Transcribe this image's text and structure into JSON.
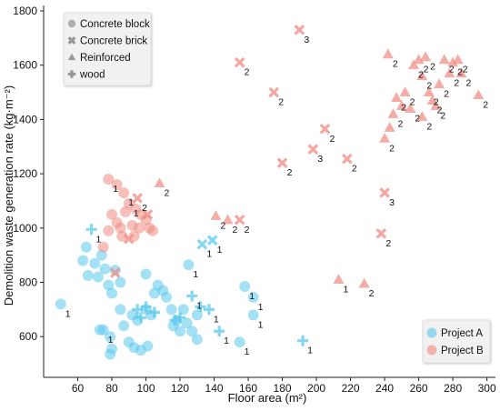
{
  "chart_data": {
    "type": "scatter",
    "xlabel": "Floor area (m²)",
    "ylabel": "Demolition waste generation rate (kg·m⁻²)",
    "xlim": [
      40,
      305
    ],
    "ylim": [
      450,
      1820
    ],
    "xticks": [
      60,
      80,
      100,
      120,
      140,
      160,
      180,
      200,
      220,
      240,
      260,
      280,
      300
    ],
    "yticks": [
      600,
      800,
      1000,
      1200,
      1400,
      1600,
      1800
    ],
    "grid": false,
    "marker_legend": {
      "placement": "top-left",
      "entries": [
        {
          "label": "Concrete block",
          "marker": "circle"
        },
        {
          "label": "Concrete brick",
          "marker": "x"
        },
        {
          "label": "Reinforced",
          "marker": "triangle"
        },
        {
          "label": "wood",
          "marker": "plus"
        }
      ]
    },
    "series_legend": {
      "placement": "bottom-right",
      "entries": [
        {
          "label": "Project A",
          "color": "#5bc8ec"
        },
        {
          "label": "Project B",
          "color": "#f08a80"
        }
      ]
    },
    "series": [
      {
        "name": "Project A",
        "color": "#5bc8ec",
        "points": [
          {
            "x": 50,
            "y": 720,
            "m": "circle",
            "label": "1"
          },
          {
            "x": 65,
            "y": 930,
            "m": "circle"
          },
          {
            "x": 63,
            "y": 880,
            "m": "circle"
          },
          {
            "x": 66,
            "y": 825,
            "m": "circle"
          },
          {
            "x": 70,
            "y": 870,
            "m": "circle"
          },
          {
            "x": 72,
            "y": 820,
            "m": "circle"
          },
          {
            "x": 74,
            "y": 900,
            "m": "circle"
          },
          {
            "x": 76,
            "y": 850,
            "m": "circle"
          },
          {
            "x": 78,
            "y": 790,
            "m": "circle"
          },
          {
            "x": 80,
            "y": 760,
            "m": "circle"
          },
          {
            "x": 82,
            "y": 845,
            "m": "circle"
          },
          {
            "x": 85,
            "y": 800,
            "m": "circle"
          },
          {
            "x": 75,
            "y": 625,
            "m": "circle",
            "label": "1"
          },
          {
            "x": 73,
            "y": 625,
            "m": "circle"
          },
          {
            "x": 79,
            "y": 600,
            "m": "circle"
          },
          {
            "x": 80,
            "y": 555,
            "m": "circle"
          },
          {
            "x": 79,
            "y": 535,
            "m": "circle"
          },
          {
            "x": 85,
            "y": 700,
            "m": "circle"
          },
          {
            "x": 87,
            "y": 640,
            "m": "circle"
          },
          {
            "x": 90,
            "y": 580,
            "m": "circle"
          },
          {
            "x": 92,
            "y": 680,
            "m": "circle"
          },
          {
            "x": 95,
            "y": 660,
            "m": "circle"
          },
          {
            "x": 93,
            "y": 560,
            "m": "circle"
          },
          {
            "x": 97,
            "y": 550,
            "m": "circle"
          },
          {
            "x": 100,
            "y": 830,
            "m": "circle"
          },
          {
            "x": 100,
            "y": 700,
            "m": "circle"
          },
          {
            "x": 101,
            "y": 565,
            "m": "circle"
          },
          {
            "x": 103,
            "y": 680,
            "m": "circle"
          },
          {
            "x": 105,
            "y": 760,
            "m": "circle"
          },
          {
            "x": 107,
            "y": 790,
            "m": "circle"
          },
          {
            "x": 110,
            "y": 770,
            "m": "circle"
          },
          {
            "x": 112,
            "y": 745,
            "m": "circle"
          },
          {
            "x": 115,
            "y": 700,
            "m": "circle"
          },
          {
            "x": 116,
            "y": 640,
            "m": "circle"
          },
          {
            "x": 118,
            "y": 660,
            "m": "circle"
          },
          {
            "x": 120,
            "y": 620,
            "m": "circle"
          },
          {
            "x": 122,
            "y": 700,
            "m": "circle"
          },
          {
            "x": 124,
            "y": 650,
            "m": "circle"
          },
          {
            "x": 125,
            "y": 865,
            "m": "circle",
            "label": "1"
          },
          {
            "x": 127,
            "y": 620,
            "m": "circle"
          },
          {
            "x": 130,
            "y": 590,
            "m": "circle"
          },
          {
            "x": 130,
            "y": 680,
            "m": "circle"
          },
          {
            "x": 155,
            "y": 580,
            "m": "circle",
            "label": "1"
          },
          {
            "x": 158,
            "y": 785,
            "m": "circle",
            "label": "1"
          },
          {
            "x": 163,
            "y": 745,
            "m": "circle",
            "label": "1"
          },
          {
            "x": 163,
            "y": 680,
            "m": "circle",
            "label": "1"
          },
          {
            "x": 68,
            "y": 995,
            "m": "plus",
            "label": "1"
          },
          {
            "x": 95,
            "y": 700,
            "m": "plus"
          },
          {
            "x": 100,
            "y": 710,
            "m": "plus"
          },
          {
            "x": 105,
            "y": 690,
            "m": "plus"
          },
          {
            "x": 97,
            "y": 670,
            "m": "plus"
          },
          {
            "x": 117,
            "y": 660,
            "m": "plus"
          },
          {
            "x": 120,
            "y": 670,
            "m": "plus"
          },
          {
            "x": 127,
            "y": 750,
            "m": "plus",
            "label": "1"
          },
          {
            "x": 132,
            "y": 710,
            "m": "plus"
          },
          {
            "x": 137,
            "y": 700,
            "m": "plus",
            "label": "1"
          },
          {
            "x": 143,
            "y": 620,
            "m": "plus",
            "label": "1"
          },
          {
            "x": 133,
            "y": 940,
            "m": "x",
            "label": "1"
          },
          {
            "x": 139,
            "y": 955,
            "m": "x",
            "label": "1"
          },
          {
            "x": 192,
            "y": 585,
            "m": "plus",
            "label": "1"
          }
        ]
      },
      {
        "name": "Project B",
        "color": "#f08a80",
        "points": [
          {
            "x": 78,
            "y": 1180,
            "m": "circle",
            "label": "1"
          },
          {
            "x": 83,
            "y": 1160,
            "m": "circle"
          },
          {
            "x": 87,
            "y": 1130,
            "m": "circle",
            "label": "1"
          },
          {
            "x": 90,
            "y": 1090,
            "m": "circle",
            "label": "1"
          },
          {
            "x": 94,
            "y": 1070,
            "m": "circle"
          },
          {
            "x": 97,
            "y": 1050,
            "m": "circle"
          },
          {
            "x": 80,
            "y": 1050,
            "m": "circle"
          },
          {
            "x": 83,
            "y": 1020,
            "m": "circle"
          },
          {
            "x": 85,
            "y": 1000,
            "m": "circle"
          },
          {
            "x": 88,
            "y": 1060,
            "m": "circle"
          },
          {
            "x": 92,
            "y": 1010,
            "m": "circle"
          },
          {
            "x": 78,
            "y": 990,
            "m": "circle"
          },
          {
            "x": 96,
            "y": 1000,
            "m": "circle"
          },
          {
            "x": 100,
            "y": 1030,
            "m": "circle"
          },
          {
            "x": 102,
            "y": 1000,
            "m": "circle"
          },
          {
            "x": 104,
            "y": 990,
            "m": "circle"
          },
          {
            "x": 93,
            "y": 970,
            "m": "circle"
          },
          {
            "x": 86,
            "y": 970,
            "m": "circle"
          },
          {
            "x": 75,
            "y": 930,
            "m": "circle"
          },
          {
            "x": 95,
            "y": 1110,
            "m": "x",
            "label": "2"
          },
          {
            "x": 101,
            "y": 1050,
            "m": "x"
          },
          {
            "x": 90,
            "y": 960,
            "m": "x"
          },
          {
            "x": 82,
            "y": 835,
            "m": "x"
          },
          {
            "x": 108,
            "y": 1165,
            "m": "triangle",
            "label": "2"
          },
          {
            "x": 141,
            "y": 1045,
            "m": "triangle",
            "label": "2"
          },
          {
            "x": 148,
            "y": 1030,
            "m": "triangle",
            "label": "2"
          },
          {
            "x": 155,
            "y": 1030,
            "m": "x",
            "label": "2"
          },
          {
            "x": 155,
            "y": 1610,
            "m": "x",
            "label": "2"
          },
          {
            "x": 175,
            "y": 1500,
            "m": "x",
            "label": "2"
          },
          {
            "x": 180,
            "y": 1240,
            "m": "x",
            "label": "2"
          },
          {
            "x": 190,
            "y": 1730,
            "m": "x",
            "label": "3"
          },
          {
            "x": 198,
            "y": 1290,
            "m": "x",
            "label": "3"
          },
          {
            "x": 205,
            "y": 1365,
            "m": "x",
            "label": "2"
          },
          {
            "x": 218,
            "y": 1255,
            "m": "x",
            "label": "2"
          },
          {
            "x": 238,
            "y": 980,
            "m": "x",
            "label": "2"
          },
          {
            "x": 240,
            "y": 1130,
            "m": "x",
            "label": "3"
          },
          {
            "x": 213,
            "y": 810,
            "m": "triangle",
            "label": "1"
          },
          {
            "x": 228,
            "y": 795,
            "m": "triangle",
            "label": "2"
          },
          {
            "x": 242,
            "y": 1640,
            "m": "triangle",
            "label": "2"
          },
          {
            "x": 240,
            "y": 1330,
            "m": "triangle",
            "label": "2"
          },
          {
            "x": 243,
            "y": 1370,
            "m": "triangle"
          },
          {
            "x": 245,
            "y": 1420,
            "m": "triangle",
            "label": "2"
          },
          {
            "x": 247,
            "y": 1480,
            "m": "triangle",
            "label": "2"
          },
          {
            "x": 250,
            "y": 1450,
            "m": "triangle"
          },
          {
            "x": 252,
            "y": 1500,
            "m": "triangle",
            "label": "2"
          },
          {
            "x": 255,
            "y": 1440,
            "m": "triangle",
            "label": "2"
          },
          {
            "x": 257,
            "y": 1600,
            "m": "triangle",
            "label": "2"
          },
          {
            "x": 260,
            "y": 1620,
            "m": "triangle",
            "label": "2"
          },
          {
            "x": 262,
            "y": 1560,
            "m": "triangle",
            "label": "2"
          },
          {
            "x": 264,
            "y": 1630,
            "m": "triangle",
            "label": "2"
          },
          {
            "x": 266,
            "y": 1500,
            "m": "triangle",
            "label": "2"
          },
          {
            "x": 268,
            "y": 1470,
            "m": "triangle",
            "label": "2"
          },
          {
            "x": 270,
            "y": 1450,
            "m": "triangle",
            "label": "2"
          },
          {
            "x": 272,
            "y": 1530,
            "m": "triangle",
            "label": "2"
          },
          {
            "x": 275,
            "y": 1620,
            "m": "triangle",
            "label": "2"
          },
          {
            "x": 278,
            "y": 1570,
            "m": "triangle",
            "label": "2"
          },
          {
            "x": 280,
            "y": 1610,
            "m": "triangle",
            "label": "2"
          },
          {
            "x": 283,
            "y": 1620,
            "m": "triangle",
            "label": "2"
          },
          {
            "x": 285,
            "y": 1570,
            "m": "triangle",
            "label": "2"
          },
          {
            "x": 262,
            "y": 1410,
            "m": "triangle",
            "label": "2"
          },
          {
            "x": 295,
            "y": 1490,
            "m": "triangle",
            "label": "2"
          }
        ]
      }
    ]
  }
}
